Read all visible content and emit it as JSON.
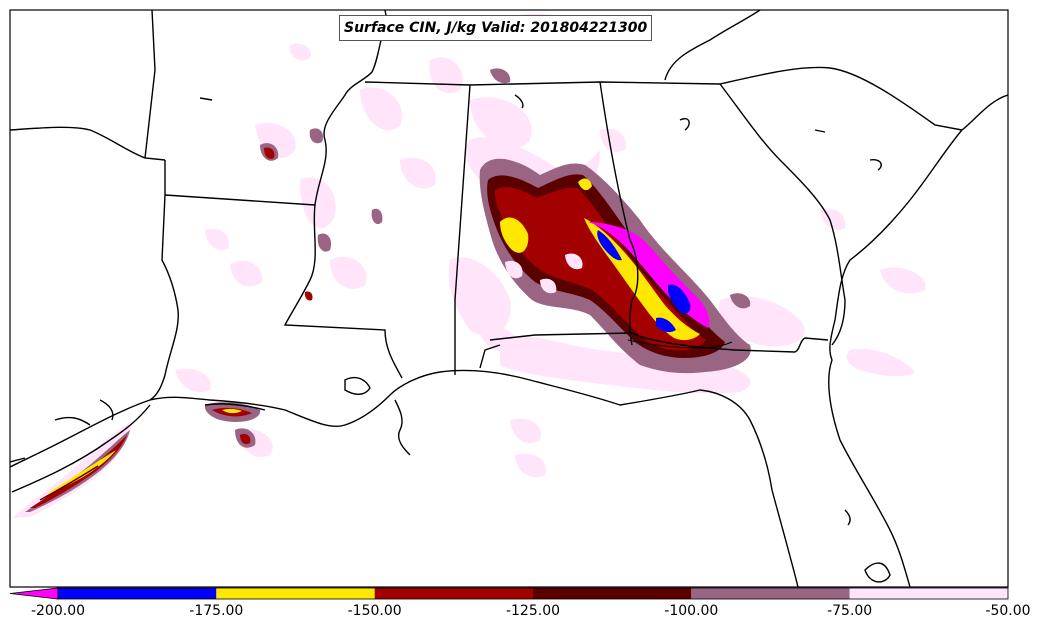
{
  "title": "Surface CIN, J/kg Valid: 201804221300",
  "colorbar": {
    "ticks": [
      "-200.00",
      "-175.00",
      "-150.00",
      "-125.00",
      "-100.00",
      "-75.00",
      "-50.00"
    ],
    "bins": [
      {
        "from": -200,
        "to": -175,
        "color": "#0000ff"
      },
      {
        "from": -175,
        "to": -150,
        "color": "#ffe800"
      },
      {
        "from": -150,
        "to": -125,
        "color": "#a30000"
      },
      {
        "from": -125,
        "to": -100,
        "color": "#5a0000"
      },
      {
        "from": -100,
        "to": -75,
        "color": "#9a6583"
      },
      {
        "from": -75,
        "to": -50,
        "color": "#ffe4fa"
      }
    ],
    "under_color": "#ff00ff",
    "min": -200,
    "max": -50
  },
  "colors": {
    "lt_pink": "#ffe4fa",
    "mauve": "#9a6583",
    "dark_maroon": "#5a0000",
    "dark_red": "#a30000",
    "yellow": "#ffe800",
    "blue": "#0000ff",
    "magenta": "#ff00ff"
  }
}
